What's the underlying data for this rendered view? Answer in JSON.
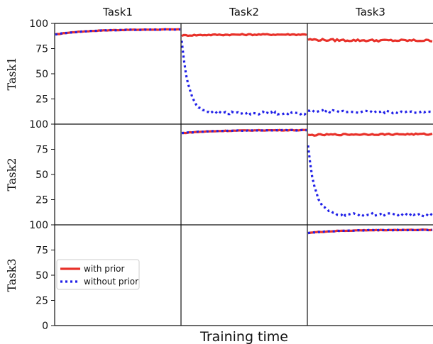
{
  "figure": {
    "xlabel": "Training time"
  },
  "chart_data": {
    "type": "line",
    "column_titles": [
      "Task1",
      "Task2",
      "Task3"
    ],
    "row_labels": [
      "Task1",
      "Task2",
      "Task3"
    ],
    "ylim": [
      0,
      100
    ],
    "yticks": [
      0,
      25,
      50,
      75,
      100
    ],
    "xlabel": "Training time",
    "legend": {
      "placement": "lower-left of bottom-left panel",
      "entries": [
        {
          "name": "with prior",
          "color": "#e8312a",
          "style": "solid"
        },
        {
          "name": "without prior",
          "color": "#1f1fe8",
          "style": "dotted"
        }
      ]
    },
    "colors": {
      "with_prior": "#e8312a",
      "without_prior": "#1f1fe8"
    },
    "panels": [
      {
        "row": 0,
        "col": 0,
        "series": [
          {
            "name": "with prior",
            "start": 89,
            "end": 94,
            "noise": 0.25
          },
          {
            "name": "without prior",
            "start": 89,
            "end": 94,
            "noise": 0.25
          }
        ]
      },
      {
        "row": 0,
        "col": 1,
        "series": [
          {
            "name": "with prior",
            "start": 88,
            "end": 89,
            "noise": 0.6
          },
          {
            "name": "without prior",
            "start": 83,
            "end": 11,
            "decay": true,
            "noise": 1.4
          }
        ]
      },
      {
        "row": 0,
        "col": 2,
        "series": [
          {
            "name": "with prior",
            "start": 84,
            "end": 83,
            "noise": 1.0
          },
          {
            "name": "without prior",
            "start": 13,
            "end": 12,
            "noise": 1.3
          }
        ]
      },
      {
        "row": 1,
        "col": 1,
        "series": [
          {
            "name": "with prior",
            "start": 91,
            "end": 94,
            "noise": 0.3
          },
          {
            "name": "without prior",
            "start": 91,
            "end": 94,
            "noise": 0.3
          }
        ]
      },
      {
        "row": 1,
        "col": 2,
        "series": [
          {
            "name": "with prior",
            "start": 89,
            "end": 90,
            "noise": 0.7
          },
          {
            "name": "without prior",
            "start": 80,
            "end": 10,
            "decay": true,
            "noise": 1.5
          }
        ]
      },
      {
        "row": 2,
        "col": 2,
        "series": [
          {
            "name": "with prior",
            "start": 92,
            "end": 95,
            "noise": 0.3
          },
          {
            "name": "without prior",
            "start": 92,
            "end": 95,
            "noise": 0.3
          }
        ]
      }
    ]
  }
}
